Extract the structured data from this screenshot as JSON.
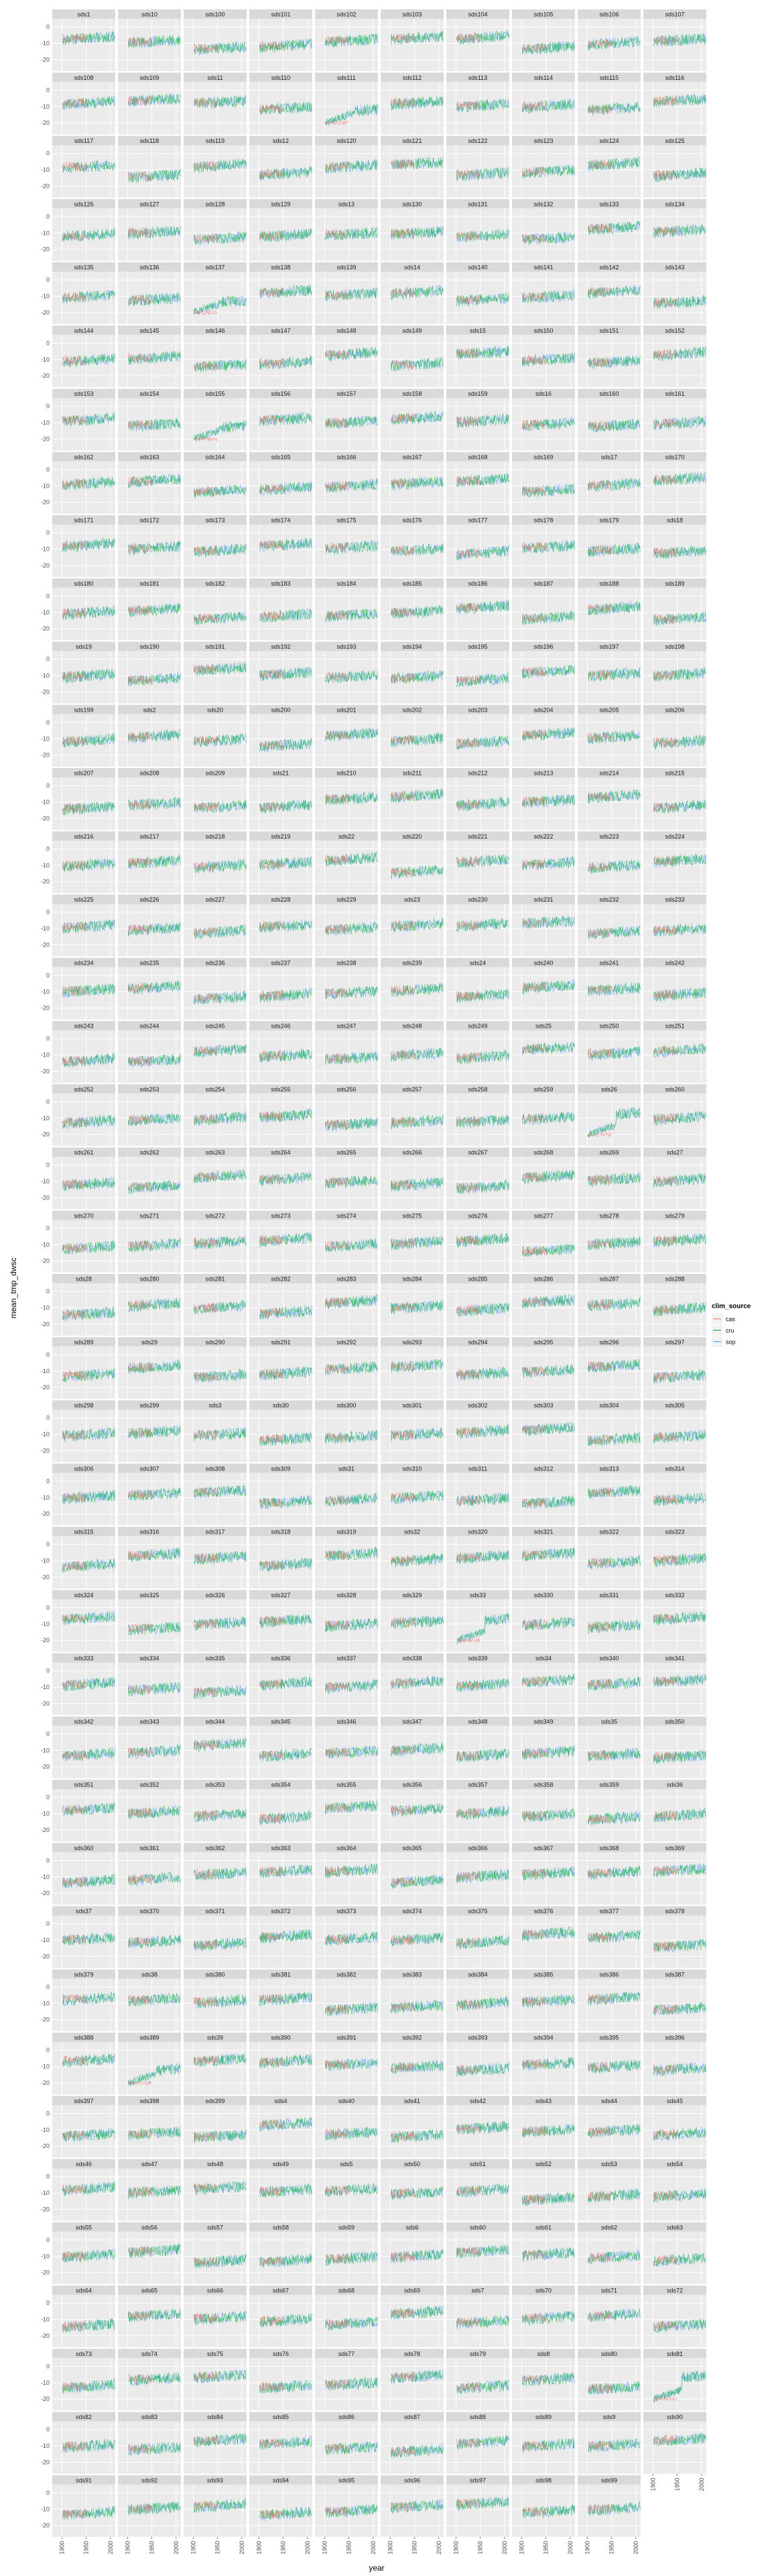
{
  "chart_data": {
    "type": "line",
    "xlabel": "year",
    "ylabel": "mean_tmp_dwsc",
    "x_ticks": [
      1900,
      1950,
      2000
    ],
    "y_ticks": [
      0,
      -10,
      -20
    ],
    "xlim": [
      1880,
      2010
    ],
    "ylim": [
      -27,
      5
    ],
    "grid": true,
    "legend": {
      "title": "clim_source",
      "entries": [
        "cas",
        "cru",
        "sop"
      ],
      "placement": "right"
    },
    "colors": {
      "cas": "#F8766D",
      "cru": "#00BA38",
      "sop": "#619CFF"
    },
    "facets": [
      "sds1",
      "sds10",
      "sds100",
      "sds101",
      "sds102",
      "sds103",
      "sds104",
      "sds105",
      "sds106",
      "sds107",
      "sds108",
      "sds109",
      "sds11",
      "sds110",
      "sds111",
      "sds112",
      "sds113",
      "sds114",
      "sds115",
      "sds116",
      "sds117",
      "sds118",
      "sds119",
      "sds12",
      "sds120",
      "sds121",
      "sds122",
      "sds123",
      "sds124",
      "sds125",
      "sds126",
      "sds127",
      "sds128",
      "sds129",
      "sds13",
      "sds130",
      "sds131",
      "sds132",
      "sds133",
      "sds134",
      "sds135",
      "sds136",
      "sds137",
      "sds138",
      "sds139",
      "sds14",
      "sds140",
      "sds141",
      "sds142",
      "sds143",
      "sds144",
      "sds145",
      "sds146",
      "sds147",
      "sds148",
      "sds149",
      "sds15",
      "sds150",
      "sds151",
      "sds152",
      "sds153",
      "sds154",
      "sds155",
      "sds156",
      "sds157",
      "sds158",
      "sds159",
      "sds16",
      "sds160",
      "sds161",
      "sds162",
      "sds163",
      "sds164",
      "sds165",
      "sds166",
      "sds167",
      "sds168",
      "sds169",
      "sds17",
      "sds170",
      "sds171",
      "sds172",
      "sds173",
      "sds174",
      "sds175",
      "sds176",
      "sds177",
      "sds178",
      "sds179",
      "sds18",
      "sds180",
      "sds181",
      "sds182",
      "sds183",
      "sds184",
      "sds185",
      "sds186",
      "sds187",
      "sds188",
      "sds189",
      "sds19",
      "sds190",
      "sds191",
      "sds192",
      "sds193",
      "sds194",
      "sds195",
      "sds196",
      "sds197",
      "sds198",
      "sds199",
      "sds2",
      "sds20",
      "sds200",
      "sds201",
      "sds202",
      "sds203",
      "sds204",
      "sds205",
      "sds206",
      "sds207",
      "sds208",
      "sds209",
      "sds21",
      "sds210",
      "sds211",
      "sds212",
      "sds213",
      "sds214",
      "sds215",
      "sds216",
      "sds217",
      "sds218",
      "sds219",
      "sds22",
      "sds220",
      "sds221",
      "sds222",
      "sds223",
      "sds224",
      "sds225",
      "sds226",
      "sds227",
      "sds228",
      "sds229",
      "sds23",
      "sds230",
      "sds231",
      "sds232",
      "sds233",
      "sds234",
      "sds235",
      "sds236",
      "sds237",
      "sds238",
      "sds239",
      "sds24",
      "sds240",
      "sds241",
      "sds242",
      "sds243",
      "sds244",
      "sds245",
      "sds246",
      "sds247",
      "sds248",
      "sds249",
      "sds25",
      "sds250",
      "sds251",
      "sds252",
      "sds253",
      "sds254",
      "sds255",
      "sds256",
      "sds257",
      "sds258",
      "sds259",
      "sds26",
      "sds260",
      "sds261",
      "sds262",
      "sds263",
      "sds264",
      "sds265",
      "sds266",
      "sds267",
      "sds268",
      "sds269",
      "sds27",
      "sds270",
      "sds271",
      "sds272",
      "sds273",
      "sds274",
      "sds275",
      "sds276",
      "sds277",
      "sds278",
      "sds279",
      "sds28",
      "sds280",
      "sds281",
      "sds282",
      "sds283",
      "sds284",
      "sds285",
      "sds286",
      "sds287",
      "sds288",
      "sds289",
      "sds29",
      "sds290",
      "sds291",
      "sds292",
      "sds293",
      "sds294",
      "sds295",
      "sds296",
      "sds297",
      "sds298",
      "sds299",
      "sds3",
      "sds30",
      "sds300",
      "sds301",
      "sds302",
      "sds303",
      "sds304",
      "sds305",
      "sds306",
      "sds307",
      "sds308",
      "sds309",
      "sds31",
      "sds310",
      "sds311",
      "sds312",
      "sds313",
      "sds314",
      "sds315",
      "sds316",
      "sds317",
      "sds318",
      "sds319",
      "sds32",
      "sds320",
      "sds321",
      "sds322",
      "sds323",
      "sds324",
      "sds325",
      "sds326",
      "sds327",
      "sds328",
      "sds329",
      "sds33",
      "sds330",
      "sds331",
      "sds332",
      "sds333",
      "sds334",
      "sds335",
      "sds336",
      "sds337",
      "sds338",
      "sds339",
      "sds34",
      "sds340",
      "sds341",
      "sds342",
      "sds343",
      "sds344",
      "sds345",
      "sds346",
      "sds347",
      "sds348",
      "sds349",
      "sds35",
      "sds350",
      "sds351",
      "sds352",
      "sds353",
      "sds354",
      "sds355",
      "sds356",
      "sds357",
      "sds358",
      "sds359",
      "sds36",
      "sds360",
      "sds361",
      "sds362",
      "sds363",
      "sds364",
      "sds365",
      "sds366",
      "sds367",
      "sds368",
      "sds369",
      "sds37",
      "sds370",
      "sds371",
      "sds372",
      "sds373",
      "sds374",
      "sds375",
      "sds376",
      "sds377",
      "sds378",
      "sds379",
      "sds38",
      "sds380",
      "sds381",
      "sds382",
      "sds383",
      "sds384",
      "sds385",
      "sds386",
      "sds387",
      "sds388",
      "sds389",
      "sds39",
      "sds390",
      "sds391",
      "sds392",
      "sds393",
      "sds394",
      "sds395",
      "sds396",
      "sds397",
      "sds398",
      "sds399",
      "sds4",
      "sds40",
      "sds41",
      "sds42",
      "sds43",
      "sds44",
      "sds45",
      "sds46",
      "sds47",
      "sds48",
      "sds49",
      "sds5",
      "sds50",
      "sds51",
      "sds52",
      "sds53",
      "sds54",
      "sds55",
      "sds56",
      "sds57",
      "sds58",
      "sds59",
      "sds6",
      "sds60",
      "sds61",
      "sds62",
      "sds63",
      "sds64",
      "sds65",
      "sds66",
      "sds67",
      "sds68",
      "sds69",
      "sds7",
      "sds70",
      "sds71",
      "sds72",
      "sds73",
      "sds74",
      "sds75",
      "sds76",
      "sds77",
      "sds78",
      "sds79",
      "sds8",
      "sds80",
      "sds81",
      "sds82",
      "sds83",
      "sds84",
      "sds85",
      "sds86",
      "sds87",
      "sds88",
      "sds89",
      "sds9",
      "sds90",
      "sds91",
      "sds92",
      "sds93",
      "sds94",
      "sds95",
      "sds96",
      "sds97",
      "sds98",
      "sds99"
    ],
    "series_spans": {
      "cas": [
        1901,
        1950
      ],
      "cru": [
        1901,
        2009
      ],
      "sop": [
        1901,
        2009
      ]
    },
    "typical_level": {
      "mean": -10,
      "range": [
        -20,
        0
      ]
    },
    "cas_anomaly_facets": [
      "sds111",
      "sds137",
      "sds155",
      "sds26",
      "sds33",
      "sds389",
      "sds81"
    ]
  }
}
